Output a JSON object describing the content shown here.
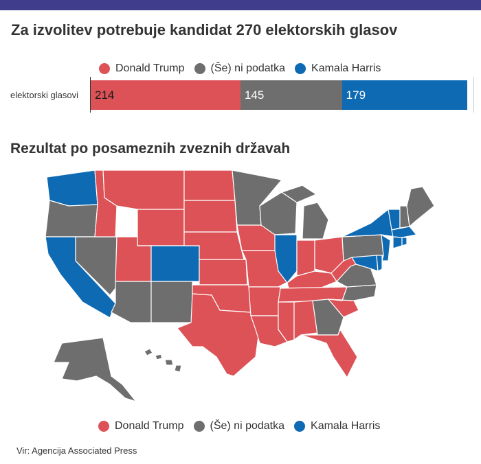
{
  "colors": {
    "topbar": "#3f3d8c",
    "trump": "#dc5256",
    "none": "#6e6e6e",
    "harris": "#0e6ab3"
  },
  "title": "Za izvolitev potrebuje kandidat 270 elektorskih glasov",
  "subtitle": "Rezultat po posameznih zveznih državah",
  "legend": [
    {
      "label": "Donald Trump",
      "color": "#dc5256"
    },
    {
      "label": "(Še) ni podatka",
      "color": "#6e6e6e"
    },
    {
      "label": "Kamala Harris",
      "color": "#0e6ab3"
    }
  ],
  "source": "Vir: Agencija Associated Press",
  "chart_data": [
    {
      "type": "bar",
      "stacked": true,
      "orientation": "horizontal",
      "categories": [
        "elektorski glasovi"
      ],
      "series": [
        {
          "name": "Donald Trump",
          "values": [
            214
          ],
          "label": "214",
          "color": "#dc5256"
        },
        {
          "name": "(Še) ni podatka",
          "values": [
            145
          ],
          "label": "145",
          "color": "#6e6e6e"
        },
        {
          "name": "Kamala Harris",
          "values": [
            179
          ],
          "label": "179",
          "color": "#0e6ab3"
        }
      ],
      "xlim": [
        0,
        538
      ],
      "legend_position": "top"
    },
    {
      "type": "map",
      "region": "ZDA",
      "categories": {
        "Donald Trump": [
          "Montana",
          "Idaho",
          "North Dakota",
          "South Dakota",
          "Wyoming",
          "Nebraska",
          "Utah",
          "Kansas",
          "Oklahoma",
          "Texas",
          "Missouri",
          "Iowa",
          "Arkansas",
          "Louisiana",
          "Mississippi",
          "Alabama",
          "Tennessee",
          "Kentucky",
          "Indiana",
          "Ohio",
          "West Virginia",
          "South Carolina",
          "Florida"
        ],
        "(Še) ni podatka": [
          "Oregon",
          "Nevada",
          "Arizona",
          "New Mexico",
          "Minnesota",
          "Wisconsin",
          "Michigan",
          "Georgia",
          "North Carolina",
          "Virginia",
          "Pennsylvania",
          "Maine",
          "New Hampshire",
          "Alaska",
          "Hawaii"
        ],
        "Kamala Harris": [
          "Washington",
          "California",
          "Colorado",
          "Illinois",
          "New York",
          "Vermont",
          "Massachusetts",
          "Connecticut",
          "Rhode Island",
          "New Jersey",
          "Delaware",
          "Maryland"
        ]
      },
      "legend_position": "bottom"
    }
  ]
}
